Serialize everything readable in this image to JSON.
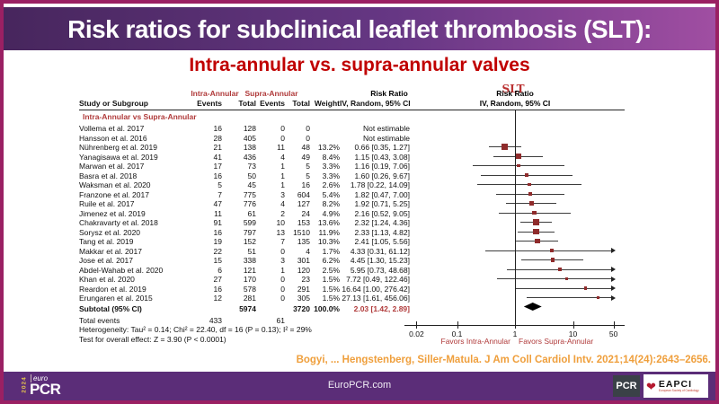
{
  "colors": {
    "frame_magenta": "#9a2063",
    "title_purple_left": "#47265d",
    "title_purple_right": "#a04ea2",
    "subtitle_red": "#c00000",
    "table_red": "#b03a3a",
    "marker_red": "#8f2b2b",
    "citation_orange": "#ef9f3c",
    "footer_purple": "#5b2d78"
  },
  "title_bar": {
    "title": "Risk ratios for subclinical leaflet thrombosis (SLT):"
  },
  "subtitle": "Intra-annular vs. supra-annular valves",
  "slt_label": "SLT",
  "table": {
    "group_headers": {
      "intra": "Intra-Annular",
      "supra": "Supra-Annular",
      "risk_ratio": "Risk Ratio"
    },
    "columns": {
      "study": "Study or Subgroup",
      "events": "Events",
      "total": "Total",
      "events2": "Events",
      "total2": "Total",
      "weight": "Weight",
      "ci": "IV, Random, 95% CI"
    },
    "right_panel": {
      "title": "Risk Ratio",
      "subtitle": "IV, Random, 95% CI"
    },
    "subgroup_label": "Intra-Annular vs Supra-Annular",
    "total_events_label": "Total events",
    "total_events_intra": "433",
    "total_events_supra": "61",
    "heterogeneity": "Heterogeneity: Tau² = 0.14; Chi² = 22.40, df = 16 (P = 0.13); I² = 29%",
    "overall_effect": "Test for overall effect: Z = 3.90 (P < 0.0001)"
  },
  "chart_data": {
    "type": "forest",
    "scale": "log10",
    "effect_measure": "Risk Ratio, IV, Random, 95% CI",
    "axis_ticks": [
      0.02,
      0.1,
      1,
      10,
      50
    ],
    "axis_range": [
      0.02,
      50
    ],
    "favors_left": "Favors Intra-Annular",
    "favors_right": "Favors Supra-Annular",
    "subgroup": "Intra-Annular vs Supra-Annular",
    "studies": [
      {
        "study": "Vollema et al. 2017",
        "events1": "16",
        "total1": "128",
        "events2": "0",
        "total2": "0",
        "weight": "",
        "rr_label": "Not estimable",
        "rr": null,
        "lo": null,
        "hi": null,
        "w": null
      },
      {
        "study": "Hansson et al. 2016",
        "events1": "28",
        "total1": "405",
        "events2": "0",
        "total2": "0",
        "weight": "",
        "rr_label": "Not estimable",
        "rr": null,
        "lo": null,
        "hi": null,
        "w": null
      },
      {
        "study": "Nührenberg et al. 2019",
        "events1": "21",
        "total1": "138",
        "events2": "11",
        "total2": "48",
        "weight": "13.2%",
        "rr_label": "0.66 [0.35, 1.27]",
        "rr": 0.66,
        "lo": 0.35,
        "hi": 1.27,
        "w": 13.2
      },
      {
        "study": "Yanagisawa et al. 2019",
        "events1": "41",
        "total1": "436",
        "events2": "4",
        "total2": "49",
        "weight": "8.4%",
        "rr_label": "1.15 [0.43, 3.08]",
        "rr": 1.15,
        "lo": 0.43,
        "hi": 3.08,
        "w": 8.4
      },
      {
        "study": "Marwan et al. 2017",
        "events1": "17",
        "total1": "73",
        "events2": "1",
        "total2": "5",
        "weight": "3.3%",
        "rr_label": "1.16 [0.19, 7.06]",
        "rr": 1.16,
        "lo": 0.19,
        "hi": 7.06,
        "w": 3.3
      },
      {
        "study": "Basra et al. 2018",
        "events1": "16",
        "total1": "50",
        "events2": "1",
        "total2": "5",
        "weight": "3.3%",
        "rr_label": "1.60 [0.26, 9.67]",
        "rr": 1.6,
        "lo": 0.26,
        "hi": 9.67,
        "w": 3.3
      },
      {
        "study": "Waksman et al. 2020",
        "events1": "5",
        "total1": "45",
        "events2": "1",
        "total2": "16",
        "weight": "2.6%",
        "rr_label": "1.78 [0.22, 14.09]",
        "rr": 1.78,
        "lo": 0.22,
        "hi": 14.09,
        "w": 2.6
      },
      {
        "study": "Franzone et al. 2017",
        "events1": "7",
        "total1": "775",
        "events2": "3",
        "total2": "604",
        "weight": "5.4%",
        "rr_label": "1.82 [0.47, 7.00]",
        "rr": 1.82,
        "lo": 0.47,
        "hi": 7.0,
        "w": 5.4
      },
      {
        "study": "Ruile et al. 2017",
        "events1": "47",
        "total1": "776",
        "events2": "4",
        "total2": "127",
        "weight": "8.2%",
        "rr_label": "1.92 [0.71, 5.25]",
        "rr": 1.92,
        "lo": 0.71,
        "hi": 5.25,
        "w": 8.2
      },
      {
        "study": "Jimenez et al. 2019",
        "events1": "11",
        "total1": "61",
        "events2": "2",
        "total2": "24",
        "weight": "4.9%",
        "rr_label": "2.16 [0.52, 9.05]",
        "rr": 2.16,
        "lo": 0.52,
        "hi": 9.05,
        "w": 4.9
      },
      {
        "study": "Chakravarty et al. 2018",
        "events1": "91",
        "total1": "599",
        "events2": "10",
        "total2": "153",
        "weight": "13.6%",
        "rr_label": "2.32 [1.24, 4.36]",
        "rr": 2.32,
        "lo": 1.24,
        "hi": 4.36,
        "w": 13.6
      },
      {
        "study": "Sorysz et al. 2020",
        "events1": "16",
        "total1": "797",
        "events2": "13",
        "total2": "1510",
        "weight": "11.9%",
        "rr_label": "2.33 [1.13, 4.82]",
        "rr": 2.33,
        "lo": 1.13,
        "hi": 4.82,
        "w": 11.9
      },
      {
        "study": "Tang et al. 2019",
        "events1": "19",
        "total1": "152",
        "events2": "7",
        "total2": "135",
        "weight": "10.3%",
        "rr_label": "2.41 [1.05, 5.56]",
        "rr": 2.41,
        "lo": 1.05,
        "hi": 5.56,
        "w": 10.3
      },
      {
        "study": "Makkar et al. 2017",
        "events1": "22",
        "total1": "51",
        "events2": "0",
        "total2": "4",
        "weight": "1.7%",
        "rr_label": "4.33 [0.31, 61.12]",
        "rr": 4.33,
        "lo": 0.31,
        "hi": 61.12,
        "w": 1.7
      },
      {
        "study": "Jose et al. 2017",
        "events1": "15",
        "total1": "338",
        "events2": "3",
        "total2": "301",
        "weight": "6.2%",
        "rr_label": "4.45 [1.30, 15.23]",
        "rr": 4.45,
        "lo": 1.3,
        "hi": 15.23,
        "w": 6.2
      },
      {
        "study": "Abdel-Wahab et al. 2020",
        "events1": "6",
        "total1": "121",
        "events2": "1",
        "total2": "120",
        "weight": "2.5%",
        "rr_label": "5.95 [0.73, 48.68]",
        "rr": 5.95,
        "lo": 0.73,
        "hi": 48.68,
        "w": 2.5
      },
      {
        "study": "Khan et al. 2020",
        "events1": "27",
        "total1": "170",
        "events2": "0",
        "total2": "23",
        "weight": "1.5%",
        "rr_label": "7.72 [0.49, 122.46]",
        "rr": 7.72,
        "lo": 0.49,
        "hi": 122.46,
        "w": 1.5
      },
      {
        "study": "Reardon et al. 2019",
        "events1": "16",
        "total1": "578",
        "events2": "0",
        "total2": "291",
        "weight": "1.5%",
        "rr_label": "16.64 [1.00, 276.42]",
        "rr": 16.64,
        "lo": 1.0,
        "hi": 276.42,
        "w": 1.5
      },
      {
        "study": "Erungaren et al. 2015",
        "events1": "12",
        "total1": "281",
        "events2": "0",
        "total2": "305",
        "weight": "1.5%",
        "rr_label": "27.13 [1.61, 456.06]",
        "rr": 27.13,
        "lo": 1.61,
        "hi": 456.06,
        "w": 1.5
      }
    ],
    "subtotal": {
      "label": "Subtotal (95% CI)",
      "total1": "5974",
      "total2": "3720",
      "weight": "100.0%",
      "rr_label": "2.03 [1.42, 2.89]",
      "rr": 2.03,
      "lo": 1.42,
      "hi": 2.89
    }
  },
  "citation": "Bogyi, ... Hengstenberg, Siller-Matula. J Am Coll Cardiol Intv. 2021;14(24):2643–2656.",
  "footer": {
    "site": "EuroPCR.com",
    "year_vertical": "2024",
    "logo_top": "euro",
    "logo_main": "PCR",
    "pcr_badge": "PCR",
    "eapci_label": "EAPCI",
    "eapci_tagline": "European Society of Cardiology"
  }
}
